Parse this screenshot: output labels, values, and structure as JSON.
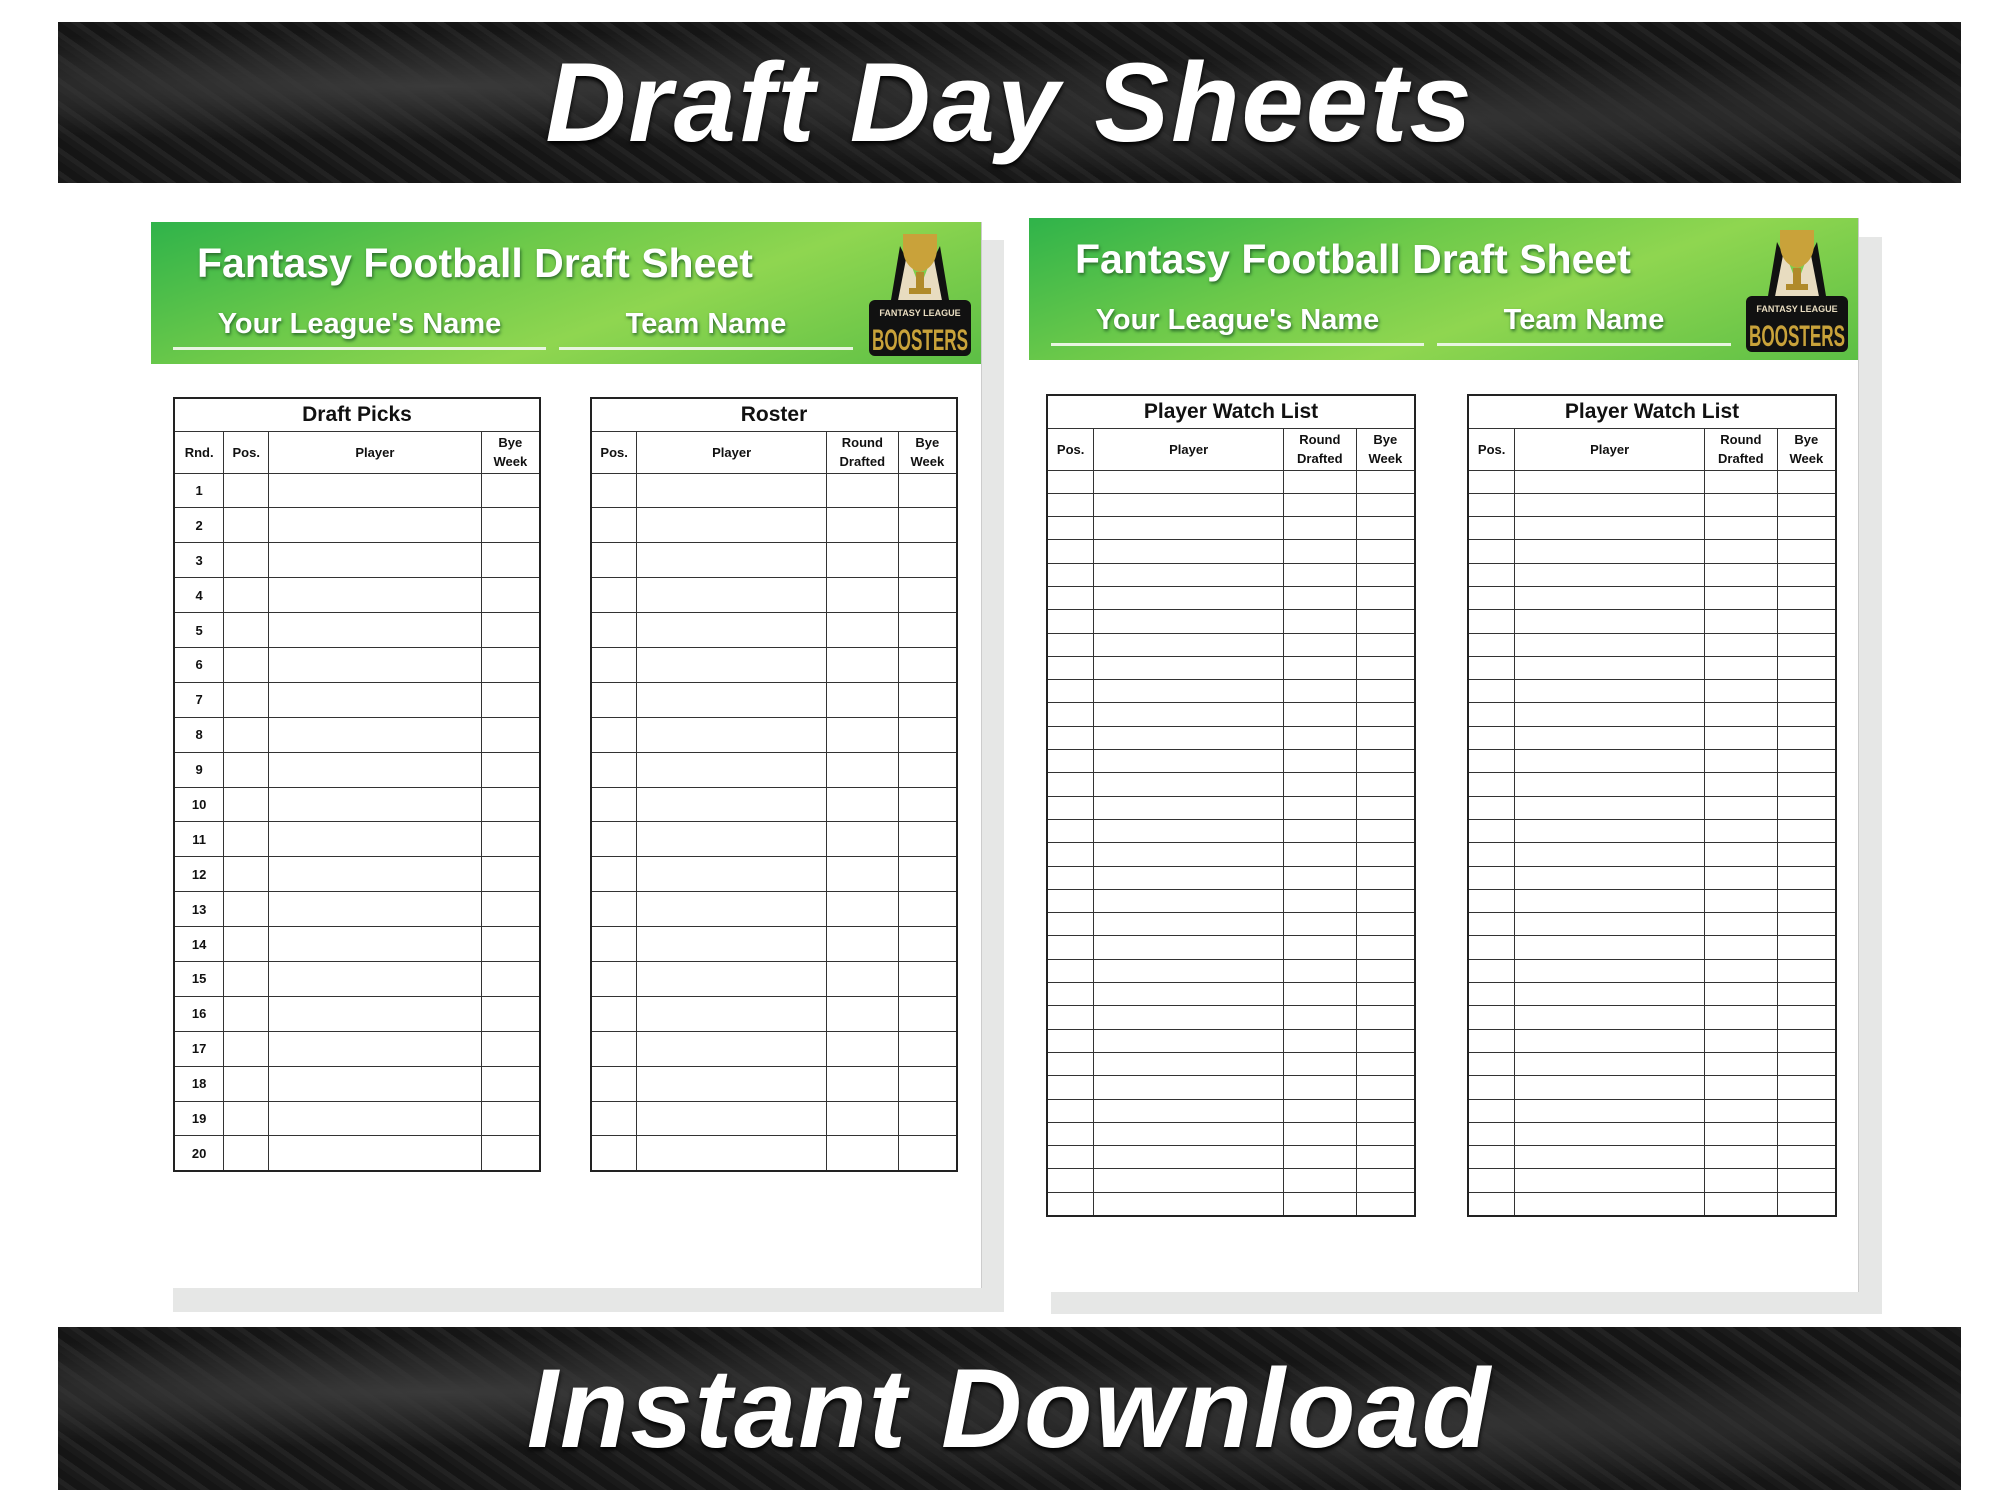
{
  "banner_top": "Draft Day Sheets",
  "banner_bottom": "Instant Download",
  "sheets": [
    {
      "title": "Fantasy Football Draft Sheet",
      "league_label": "Your League's Name",
      "team_label": "Team Name",
      "logo": {
        "top_text": "FANTASY LEAGUE",
        "main_text": "BOOSTERS"
      },
      "tables": [
        {
          "title": "Draft Picks",
          "columns": [
            "Rnd.",
            "Pos.",
            "Player",
            "Bye Week"
          ],
          "row_labels": [
            "1",
            "2",
            "3",
            "4",
            "5",
            "6",
            "7",
            "8",
            "9",
            "10",
            "11",
            "12",
            "13",
            "14",
            "15",
            "16",
            "17",
            "18",
            "19",
            "20"
          ]
        },
        {
          "title": "Roster",
          "columns": [
            "Pos.",
            "Player",
            "Round Drafted",
            "Bye Week"
          ],
          "rows": 20
        }
      ]
    },
    {
      "title": "Fantasy Football Draft Sheet",
      "league_label": "Your League's Name",
      "team_label": "Team Name",
      "logo": {
        "top_text": "FANTASY LEAGUE",
        "main_text": "BOOSTERS"
      },
      "tables": [
        {
          "title": "Player Watch List",
          "columns": [
            "Pos.",
            "Player",
            "Round Drafted",
            "Bye Week"
          ],
          "rows": 32
        },
        {
          "title": "Player Watch List",
          "columns": [
            "Pos.",
            "Player",
            "Round Drafted",
            "Bye Week"
          ],
          "rows": 32
        }
      ]
    }
  ],
  "colors": {
    "header_green": "#6cc94a",
    "banner": "#1b1b1b",
    "logo_gold": "#c9a23a"
  }
}
